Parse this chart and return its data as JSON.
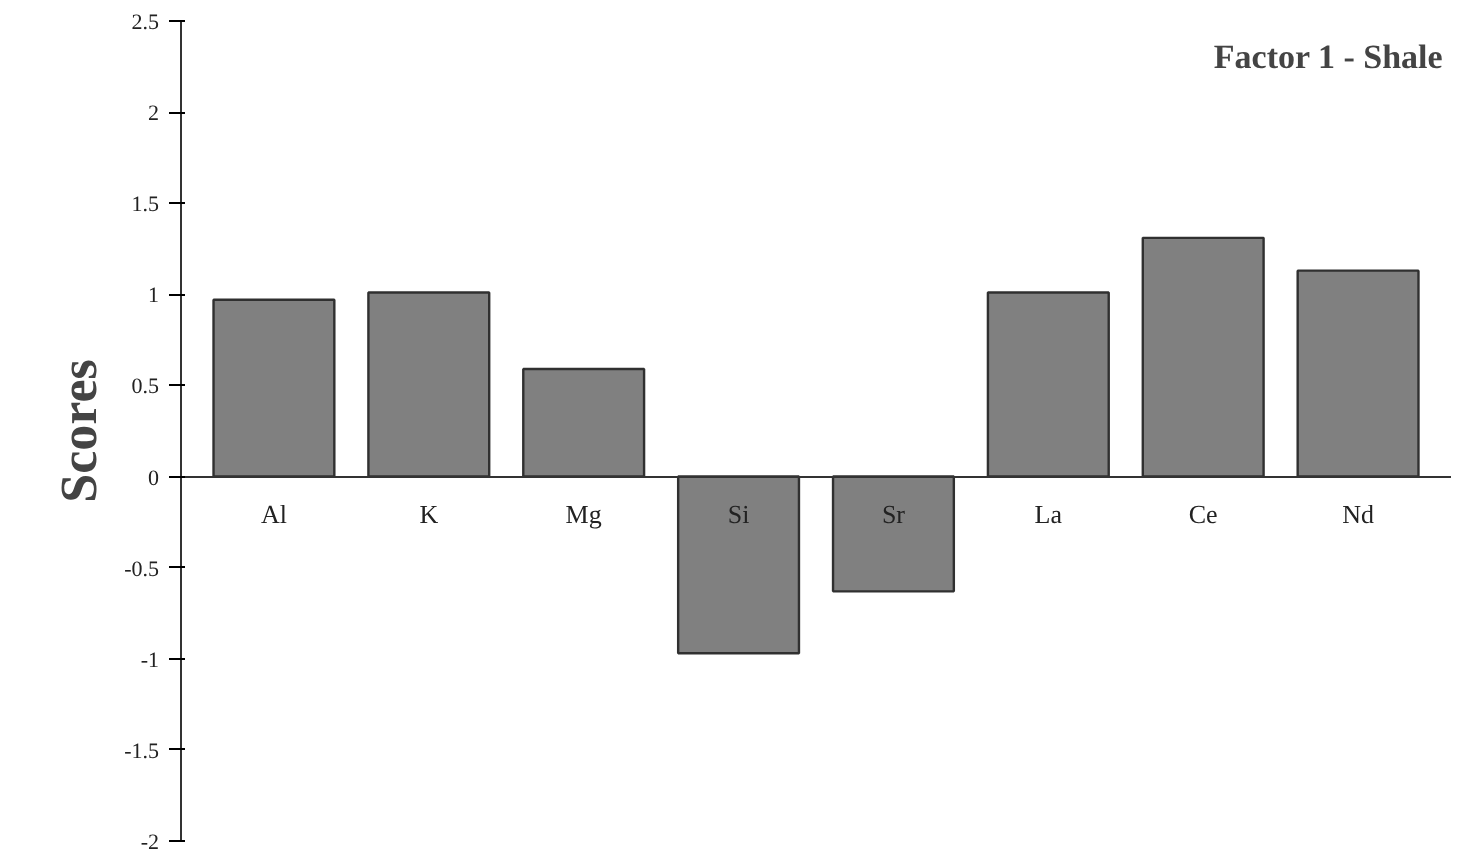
{
  "chart_data": {
    "type": "bar",
    "title": "Factor 1 - Shale",
    "ylabel": "Scores",
    "categories": [
      "Al",
      "K",
      "Mg",
      "Si",
      "Sr",
      "La",
      "Ce",
      "Nd"
    ],
    "values": [
      0.97,
      1.01,
      0.59,
      -0.97,
      -0.63,
      1.01,
      1.31,
      1.13
    ],
    "color": "#808080",
    "ylim": [
      -2,
      2.5
    ],
    "yticks": [
      -2,
      -1.5,
      -1,
      -0.5,
      0,
      0.5,
      1,
      1.5,
      2,
      2.5
    ],
    "grid": false
  }
}
